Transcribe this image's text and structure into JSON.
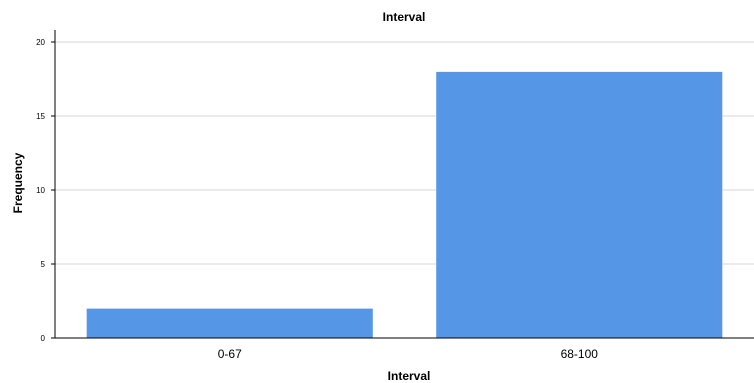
{
  "chart_data": {
    "type": "bar",
    "title": "Interval",
    "xlabel": "Interval",
    "ylabel": "Frequency",
    "categories": [
      "0-67",
      "68-100"
    ],
    "values": [
      2,
      18
    ],
    "ylim": [
      0,
      20
    ],
    "yticks": [
      0,
      5,
      10,
      15,
      20
    ],
    "grid": true,
    "bar_color": "#5596e6",
    "grid_color": "#d4d4d4",
    "axis_color": "#000000"
  }
}
